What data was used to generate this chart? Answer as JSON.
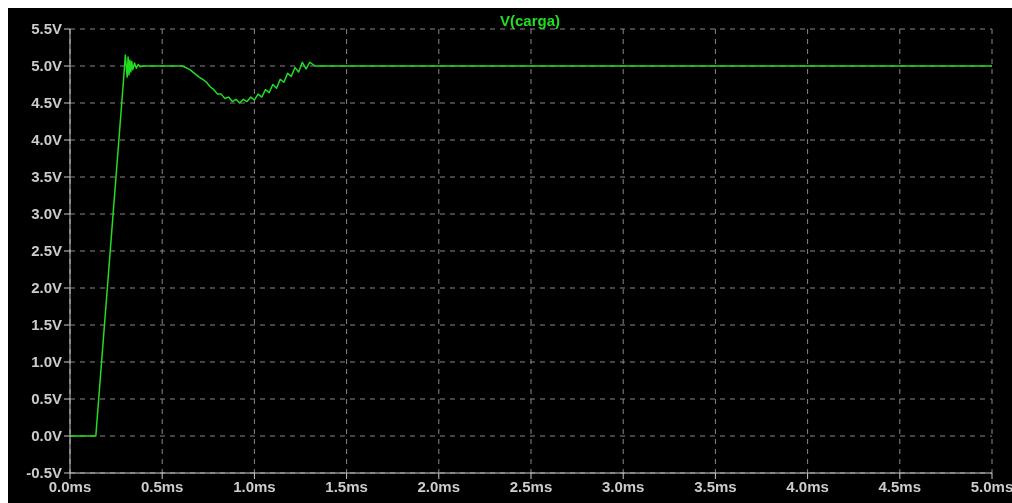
{
  "chart_data": {
    "type": "line",
    "legend": "top",
    "grid": true,
    "marker": "none",
    "line_style": "solid",
    "x": [
      0,
      0.14,
      0.29,
      0.3,
      0.31,
      0.315,
      0.32,
      0.325,
      0.33,
      0.335,
      0.34,
      0.35,
      0.36,
      0.37,
      0.38,
      0.4,
      0.45,
      0.61,
      0.65,
      0.7,
      0.72,
      0.74,
      0.76,
      0.78,
      0.8,
      0.82,
      0.84,
      0.86,
      0.88,
      0.9,
      0.92,
      0.94,
      0.96,
      0.98,
      1.0,
      1.02,
      1.04,
      1.06,
      1.08,
      1.1,
      1.12,
      1.14,
      1.16,
      1.18,
      1.2,
      1.22,
      1.24,
      1.26,
      1.28,
      1.3,
      1.33,
      5.0
    ],
    "series": [
      {
        "name": "V(carga)",
        "color": "#22dd22",
        "values": [
          0,
          0,
          4.8,
          5.15,
          4.85,
          5.12,
          4.88,
          5.08,
          4.92,
          5.06,
          4.95,
          5.04,
          4.97,
          5.02,
          4.99,
          5.0,
          5.0,
          5.0,
          4.95,
          4.85,
          4.82,
          4.78,
          4.72,
          4.68,
          4.62,
          4.62,
          4.56,
          4.58,
          4.52,
          4.55,
          4.5,
          4.55,
          4.52,
          4.58,
          4.54,
          4.62,
          4.58,
          4.68,
          4.64,
          4.75,
          4.7,
          4.82,
          4.78,
          4.9,
          4.86,
          4.98,
          4.92,
          5.05,
          4.96,
          5.05,
          5.0,
          5.0
        ]
      }
    ],
    "xlim": [
      0,
      5
    ],
    "xticks": [
      {
        "value": 0,
        "label": "0.0ms"
      },
      {
        "value": 0.5,
        "label": "0.5ms"
      },
      {
        "value": 1,
        "label": "1.0ms"
      },
      {
        "value": 1.5,
        "label": "1.5ms"
      },
      {
        "value": 2,
        "label": "2.0ms"
      },
      {
        "value": 2.5,
        "label": "2.5ms"
      },
      {
        "value": 3,
        "label": "3.0ms"
      },
      {
        "value": 3.5,
        "label": "3.5ms"
      },
      {
        "value": 4,
        "label": "4.0ms"
      },
      {
        "value": 4.5,
        "label": "4.5ms"
      },
      {
        "value": 5,
        "label": "5.0ms"
      }
    ],
    "ylim": [
      -0.5,
      5.5
    ],
    "yticks": [
      {
        "value": -0.5,
        "label": "-0.5V"
      },
      {
        "value": 0,
        "label": "0.0V"
      },
      {
        "value": 0.5,
        "label": "0.5V"
      },
      {
        "value": 1,
        "label": "1.0V"
      },
      {
        "value": 1.5,
        "label": "1.5V"
      },
      {
        "value": 2,
        "label": "2.0V"
      },
      {
        "value": 2.5,
        "label": "2.5V"
      },
      {
        "value": 3,
        "label": "3.0V"
      },
      {
        "value": 3.5,
        "label": "3.5V"
      },
      {
        "value": 4,
        "label": "4.0V"
      },
      {
        "value": 4.5,
        "label": "4.5V"
      },
      {
        "value": 5,
        "label": "5.0V"
      },
      {
        "value": 5.5,
        "label": "5.5V"
      }
    ]
  }
}
